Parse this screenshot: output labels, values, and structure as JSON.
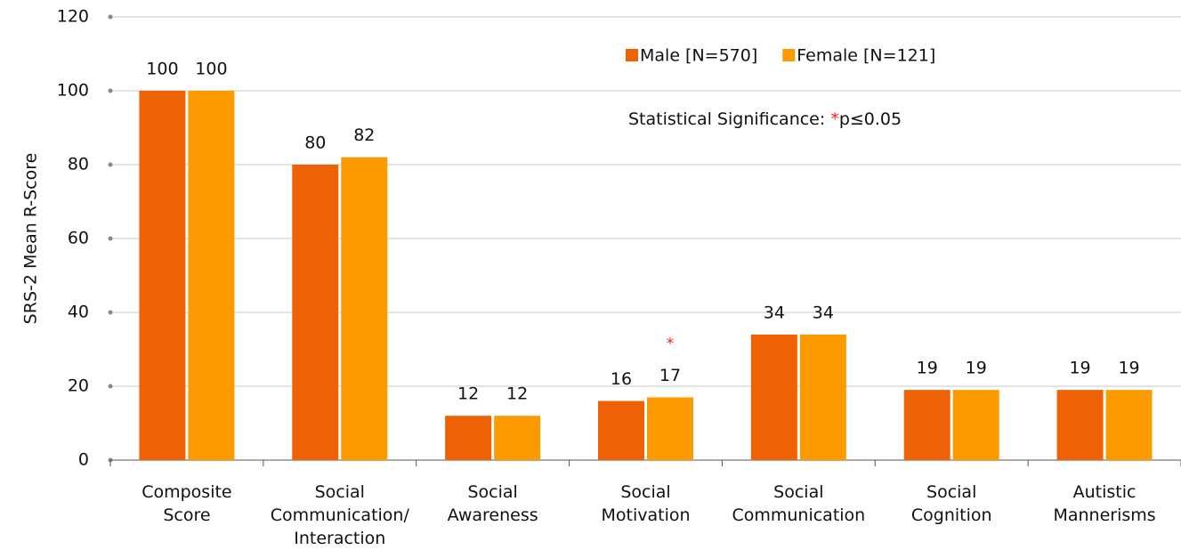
{
  "chart_data": {
    "type": "bar",
    "y_label": "SRS-2 Mean R-Score",
    "categories": [
      "Composite Score",
      "Social Communication/ Interaction",
      "Social Awareness",
      "Social Motivation",
      "Social Communication",
      "Social Cognition",
      "Autistic Mannerisms"
    ],
    "series": [
      {
        "name": "Male [N=570]",
        "color": "#ee6205",
        "values": [
          100,
          80,
          12,
          16,
          34,
          19,
          19
        ]
      },
      {
        "name": "Female [N=121]",
        "color": "#fd9a00",
        "values": [
          100,
          82,
          12,
          17,
          34,
          19,
          19
        ]
      }
    ],
    "ylim": [
      0,
      120
    ],
    "yticks": [
      0,
      20,
      40,
      60,
      80,
      100,
      120
    ],
    "grid": true,
    "significance_note": {
      "label": "Statistical Significance: ",
      "marker": "*",
      "threshold": "p≤0.05"
    },
    "markers": [
      {
        "text": "*",
        "series": 1,
        "category": 3,
        "color": "#e8231f"
      }
    ]
  }
}
